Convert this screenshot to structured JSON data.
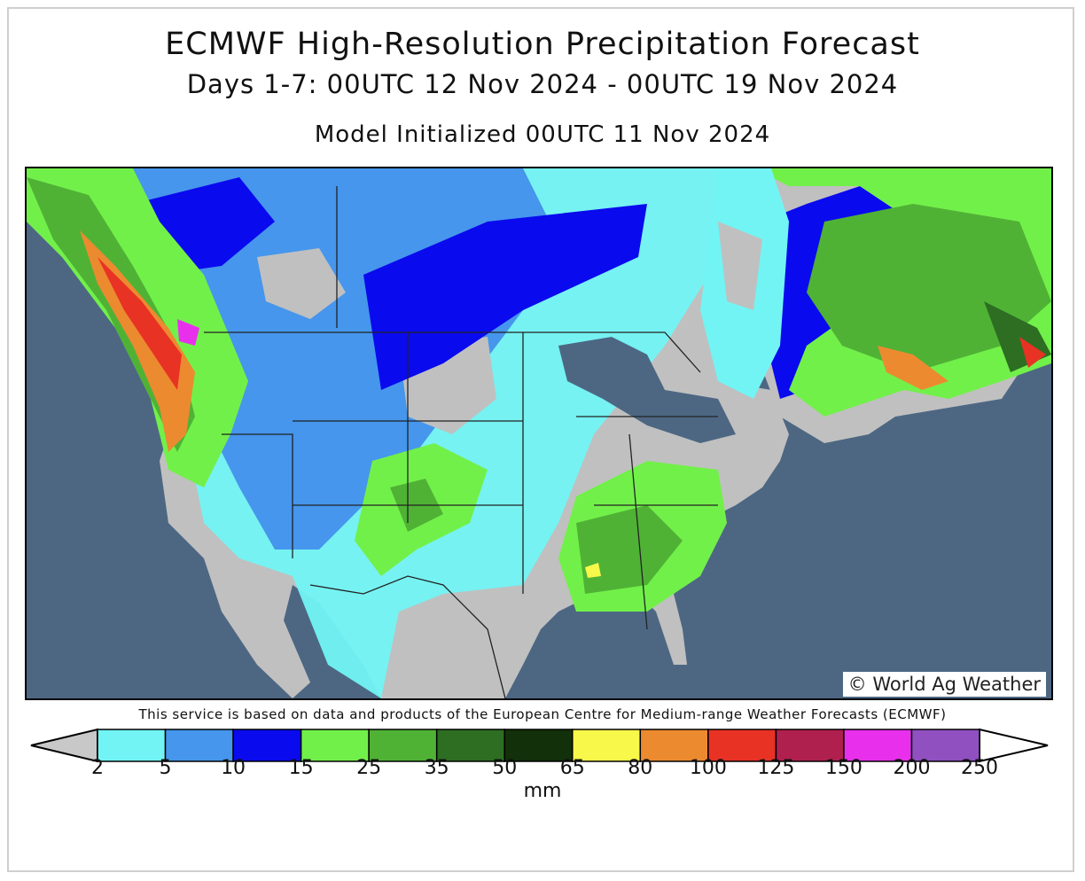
{
  "header": {
    "title": "ECMWF High-Resolution Precipitation Forecast",
    "subtitle": "Days 1-7: 00UTC 12 Nov 2024 - 00UTC 19 Nov 2024",
    "init": "Model Initialized 00UTC 11 Nov 2024"
  },
  "map": {
    "copyright": "© World Ag Weather",
    "ocean_color": "#4d6783",
    "land_dry_color": "#c0c0c0"
  },
  "footer": {
    "service_note": "This service is based on data and products of the European Centre for Medium-range Weather Forecasts (ECMWF)"
  },
  "legend": {
    "unit": "mm",
    "below_color": "#c8c8c8",
    "above_color": "#ffffff",
    "bins": [
      {
        "from": "2",
        "to": "5",
        "color": "#72f4f4"
      },
      {
        "from": "5",
        "to": "10",
        "color": "#4596ec"
      },
      {
        "from": "10",
        "to": "15",
        "color": "#0a0aee"
      },
      {
        "from": "15",
        "to": "25",
        "color": "#72f04a"
      },
      {
        "from": "25",
        "to": "35",
        "color": "#4fb235"
      },
      {
        "from": "35",
        "to": "50",
        "color": "#2d6e22"
      },
      {
        "from": "50",
        "to": "65",
        "color": "#12300a"
      },
      {
        "from": "65",
        "to": "80",
        "color": "#f8f84a"
      },
      {
        "from": "80",
        "to": "100",
        "color": "#ec8a30"
      },
      {
        "from": "100",
        "to": "125",
        "color": "#e83224"
      },
      {
        "from": "125",
        "to": "150",
        "color": "#b0204e"
      },
      {
        "from": "150",
        "to": "200",
        "color": "#e830ec"
      },
      {
        "from": "200",
        "to": "250",
        "color": "#9050c0"
      }
    ],
    "ticks": [
      "2",
      "5",
      "10",
      "15",
      "25",
      "35",
      "50",
      "65",
      "80",
      "100",
      "125",
      "150",
      "200",
      "250"
    ]
  }
}
